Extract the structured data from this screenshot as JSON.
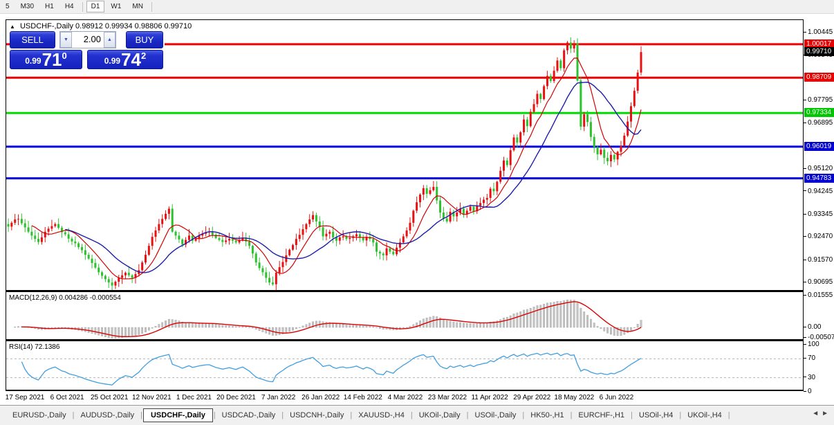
{
  "toolbar": {
    "timeframes": [
      "5",
      "M30",
      "H1",
      "H4",
      "D1",
      "W1",
      "MN"
    ],
    "active": "D1"
  },
  "chart": {
    "title_symbol": "USDCHF-,Daily",
    "title_ohlc": "0.98912 0.99934 0.98806 0.99710",
    "collapse_arrow": "▲",
    "trade_panel": {
      "sell_label": "SELL",
      "buy_label": "BUY",
      "volume": "2.00",
      "down_arrow": "▼",
      "up_arrow": "▲",
      "sell_price": {
        "prefix": "0.99",
        "big": "71",
        "sup": "0"
      },
      "buy_price": {
        "prefix": "0.99",
        "big": "74",
        "sup": "2"
      }
    },
    "axis_ticks": [
      "1.00445",
      "0.99545",
      "0.97795",
      "0.96895",
      "0.95120",
      "0.94245",
      "0.93345",
      "0.92470",
      "0.91570",
      "0.90695"
    ],
    "badges": [
      {
        "label": "1.00017",
        "value": 1.00017,
        "bg": "#e60000"
      },
      {
        "label": "0.99710",
        "value": 0.9971,
        "bg": "#000000"
      },
      {
        "label": "0.98709",
        "value": 0.98709,
        "bg": "#e60000"
      },
      {
        "label": "0.97334",
        "value": 0.97334,
        "bg": "#00c800"
      },
      {
        "label": "0.96019",
        "value": 0.96019,
        "bg": "#0000d2"
      },
      {
        "label": "0.94783",
        "value": 0.94783,
        "bg": "#0000d2"
      }
    ]
  },
  "macd_panel": {
    "label": "MACD(12,26,9) 0.004286 -0.000554",
    "axis": [
      {
        "label": "0.01555",
        "value": 0.01555
      },
      {
        "label": "0.00",
        "value": 0.0
      },
      {
        "label": "-0.00507",
        "value": -0.00507
      }
    ]
  },
  "rsi_panel": {
    "label": "RSI(14) 72.1386",
    "axis": [
      {
        "label": "100",
        "value": 100
      },
      {
        "label": "70",
        "value": 70
      },
      {
        "label": "30",
        "value": 30
      },
      {
        "label": "0",
        "value": 0
      }
    ],
    "levels": [
      70,
      30
    ]
  },
  "dates": [
    "17 Sep 2021",
    "6 Oct 2021",
    "25 Oct 2021",
    "12 Nov 2021",
    "1 Dec 2021",
    "20 Dec 2021",
    "7 Jan 2022",
    "26 Jan 2022",
    "14 Feb 2022",
    "4 Mar 2022",
    "23 Mar 2022",
    "11 Apr 2022",
    "29 Apr 2022",
    "18 May 2022",
    "6 Jun 2022"
  ],
  "tabs": {
    "items": [
      "EURUSD-,Daily",
      "AUDUSD-,Daily",
      "USDCHF-,Daily",
      "USDCAD-,Daily",
      "USDCNH-,Daily",
      "XAUUSD-,H4",
      "UKOil-,Daily",
      "USOil-,Daily",
      "HK50-,H1",
      "EURCHF-,H1",
      "USOil-,H4",
      "UKOil-,H4"
    ],
    "active": "USDCHF-,Daily",
    "nav_left": "◄",
    "nav_right": "►"
  },
  "chart_data": {
    "type": "candlestick",
    "symbol": "USDCHF-",
    "timeframe": "Daily",
    "last_ohlc": {
      "open": 0.98912,
      "high": 0.99934,
      "low": 0.98806,
      "close": 0.9971
    },
    "first_open": 0.93,
    "ylim": [
      0.9037,
      1.0091
    ],
    "axis_top_value": 1.00445,
    "closes": [
      0.929,
      0.9305,
      0.9318,
      0.932,
      0.9303,
      0.9287,
      0.927,
      0.9255,
      0.9242,
      0.923,
      0.9248,
      0.927,
      0.9282,
      0.9292,
      0.93,
      0.9285,
      0.9268,
      0.926,
      0.9243,
      0.9232,
      0.9225,
      0.921,
      0.9198,
      0.918,
      0.9165,
      0.9148,
      0.913,
      0.9112,
      0.9098,
      0.9085,
      0.9072,
      0.906,
      0.9075,
      0.909,
      0.91,
      0.911,
      0.91,
      0.909,
      0.9105,
      0.912,
      0.915,
      0.918,
      0.9215,
      0.925,
      0.9275,
      0.93,
      0.932,
      0.934,
      0.936,
      0.927,
      0.9255,
      0.924,
      0.922,
      0.9238,
      0.9255,
      0.9235,
      0.9245,
      0.9255,
      0.9262,
      0.9268,
      0.927,
      0.9258,
      0.9245,
      0.9238,
      0.923,
      0.9236,
      0.9242,
      0.9235,
      0.9228,
      0.9238,
      0.9246,
      0.9232,
      0.9215,
      0.9185,
      0.915,
      0.9128,
      0.9112,
      0.909,
      0.9072,
      0.9065,
      0.911,
      0.9132,
      0.9152,
      0.9178,
      0.92,
      0.9218,
      0.9242,
      0.9258,
      0.928,
      0.93,
      0.9318,
      0.9335,
      0.931,
      0.9288,
      0.9252,
      0.9262,
      0.927,
      0.9248,
      0.9235,
      0.9248,
      0.9252,
      0.9242,
      0.9246,
      0.9252,
      0.926,
      0.9248,
      0.9236,
      0.925,
      0.9242,
      0.9228,
      0.9192,
      0.9185,
      0.9178,
      0.9205,
      0.9192,
      0.9182,
      0.9208,
      0.9228,
      0.9252,
      0.9275,
      0.9305,
      0.9352,
      0.9385,
      0.9415,
      0.944,
      0.9418,
      0.9432,
      0.9445,
      0.9392,
      0.9345,
      0.9322,
      0.931,
      0.9348,
      0.933,
      0.9345,
      0.936,
      0.9338,
      0.9352,
      0.9368,
      0.935,
      0.9372,
      0.9382,
      0.9395,
      0.9402,
      0.9438,
      0.9428,
      0.9465,
      0.9508,
      0.9548,
      0.953,
      0.9588,
      0.9638,
      0.9618,
      0.9658,
      0.9708,
      0.9682,
      0.9738,
      0.9768,
      0.9808,
      0.9788,
      0.9838,
      0.9878,
      0.9858,
      0.9898,
      0.9938,
      0.9908,
      0.9978,
      1.0008,
      0.9985,
      1.0005,
      0.986,
      0.968,
      0.9728,
      0.9698,
      0.964,
      0.96,
      0.9572,
      0.959,
      0.9558,
      0.9545,
      0.957,
      0.9552,
      0.9582,
      0.9605,
      0.9645,
      0.97,
      0.976,
      0.982,
      0.9891,
      0.9971
    ],
    "hlines": [
      {
        "value": 1.00017,
        "color": "#f00000"
      },
      {
        "value": 0.98709,
        "color": "#f00000"
      },
      {
        "value": 0.97334,
        "color": "#00dc00"
      },
      {
        "value": 0.96019,
        "color": "#0000e0"
      },
      {
        "value": 0.94783,
        "color": "#0000e0"
      }
    ],
    "indicators": [
      {
        "name": "MACD",
        "params": "12,26,9",
        "main_value": 0.004286,
        "signal_value": -0.000554,
        "range": [
          -0.00507,
          0.01555
        ]
      },
      {
        "name": "RSI",
        "params": "14",
        "value": 72.1386,
        "range": [
          0,
          100
        ],
        "levels": [
          70,
          30
        ]
      }
    ],
    "colors": {
      "up_candle": "#e81010",
      "down_candle": "#2dc22d",
      "ma_fast": "#d40000",
      "ma_slow": "#1d1daa",
      "macd_hist": "#c4c4c4",
      "macd_signal": "#dd0000",
      "rsi_line": "#3f9ee0"
    }
  }
}
